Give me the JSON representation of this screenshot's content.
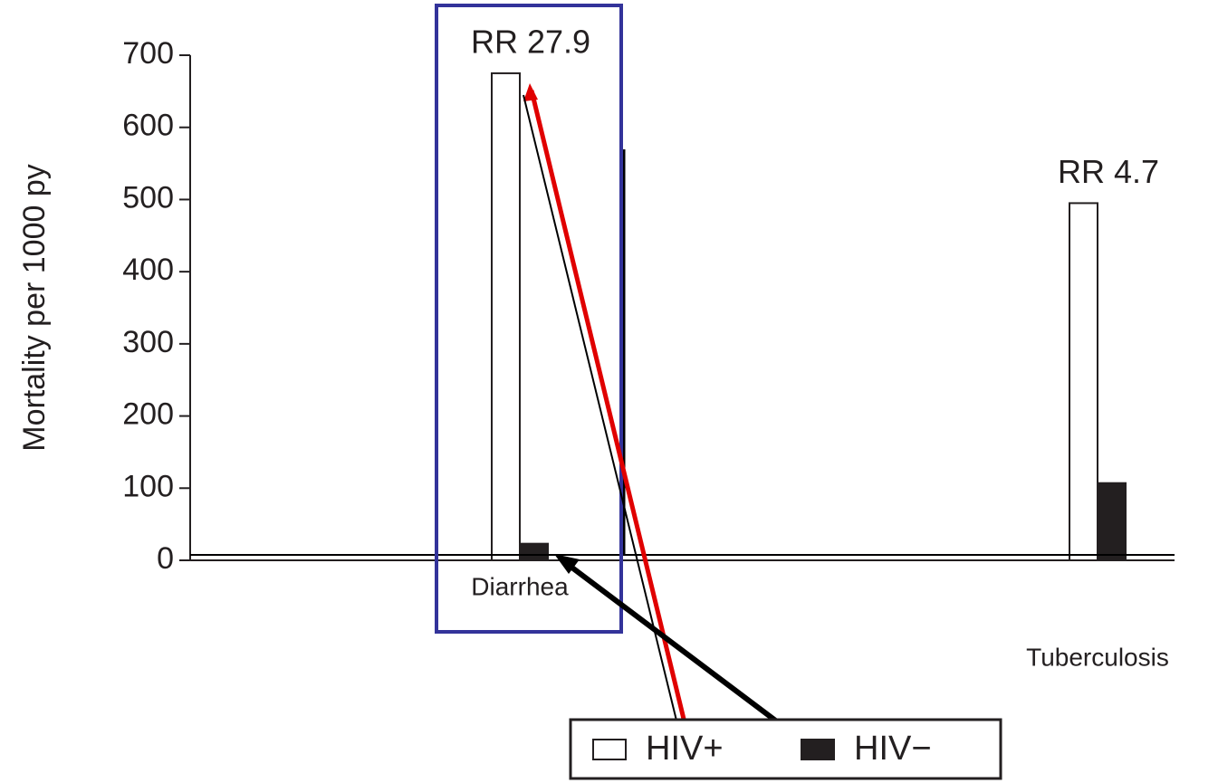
{
  "chart_data": {
    "type": "bar",
    "y_label": "Mortality per 1000 py",
    "categories": [
      "Diarrhea",
      "Tuberculosis"
    ],
    "series": [
      {
        "name": "HIV+",
        "color": "#ffffff",
        "values": [
          675,
          495
        ]
      },
      {
        "name": "HIV−",
        "color": "#231f20",
        "values": [
          23,
          107
        ]
      }
    ],
    "annotations": [
      "RR 27.9",
      "RR 4.7"
    ],
    "ylim": [
      0,
      700
    ],
    "yticks": [
      0,
      100,
      200,
      300,
      400,
      500,
      600,
      700
    ],
    "legend": "bottom"
  }
}
